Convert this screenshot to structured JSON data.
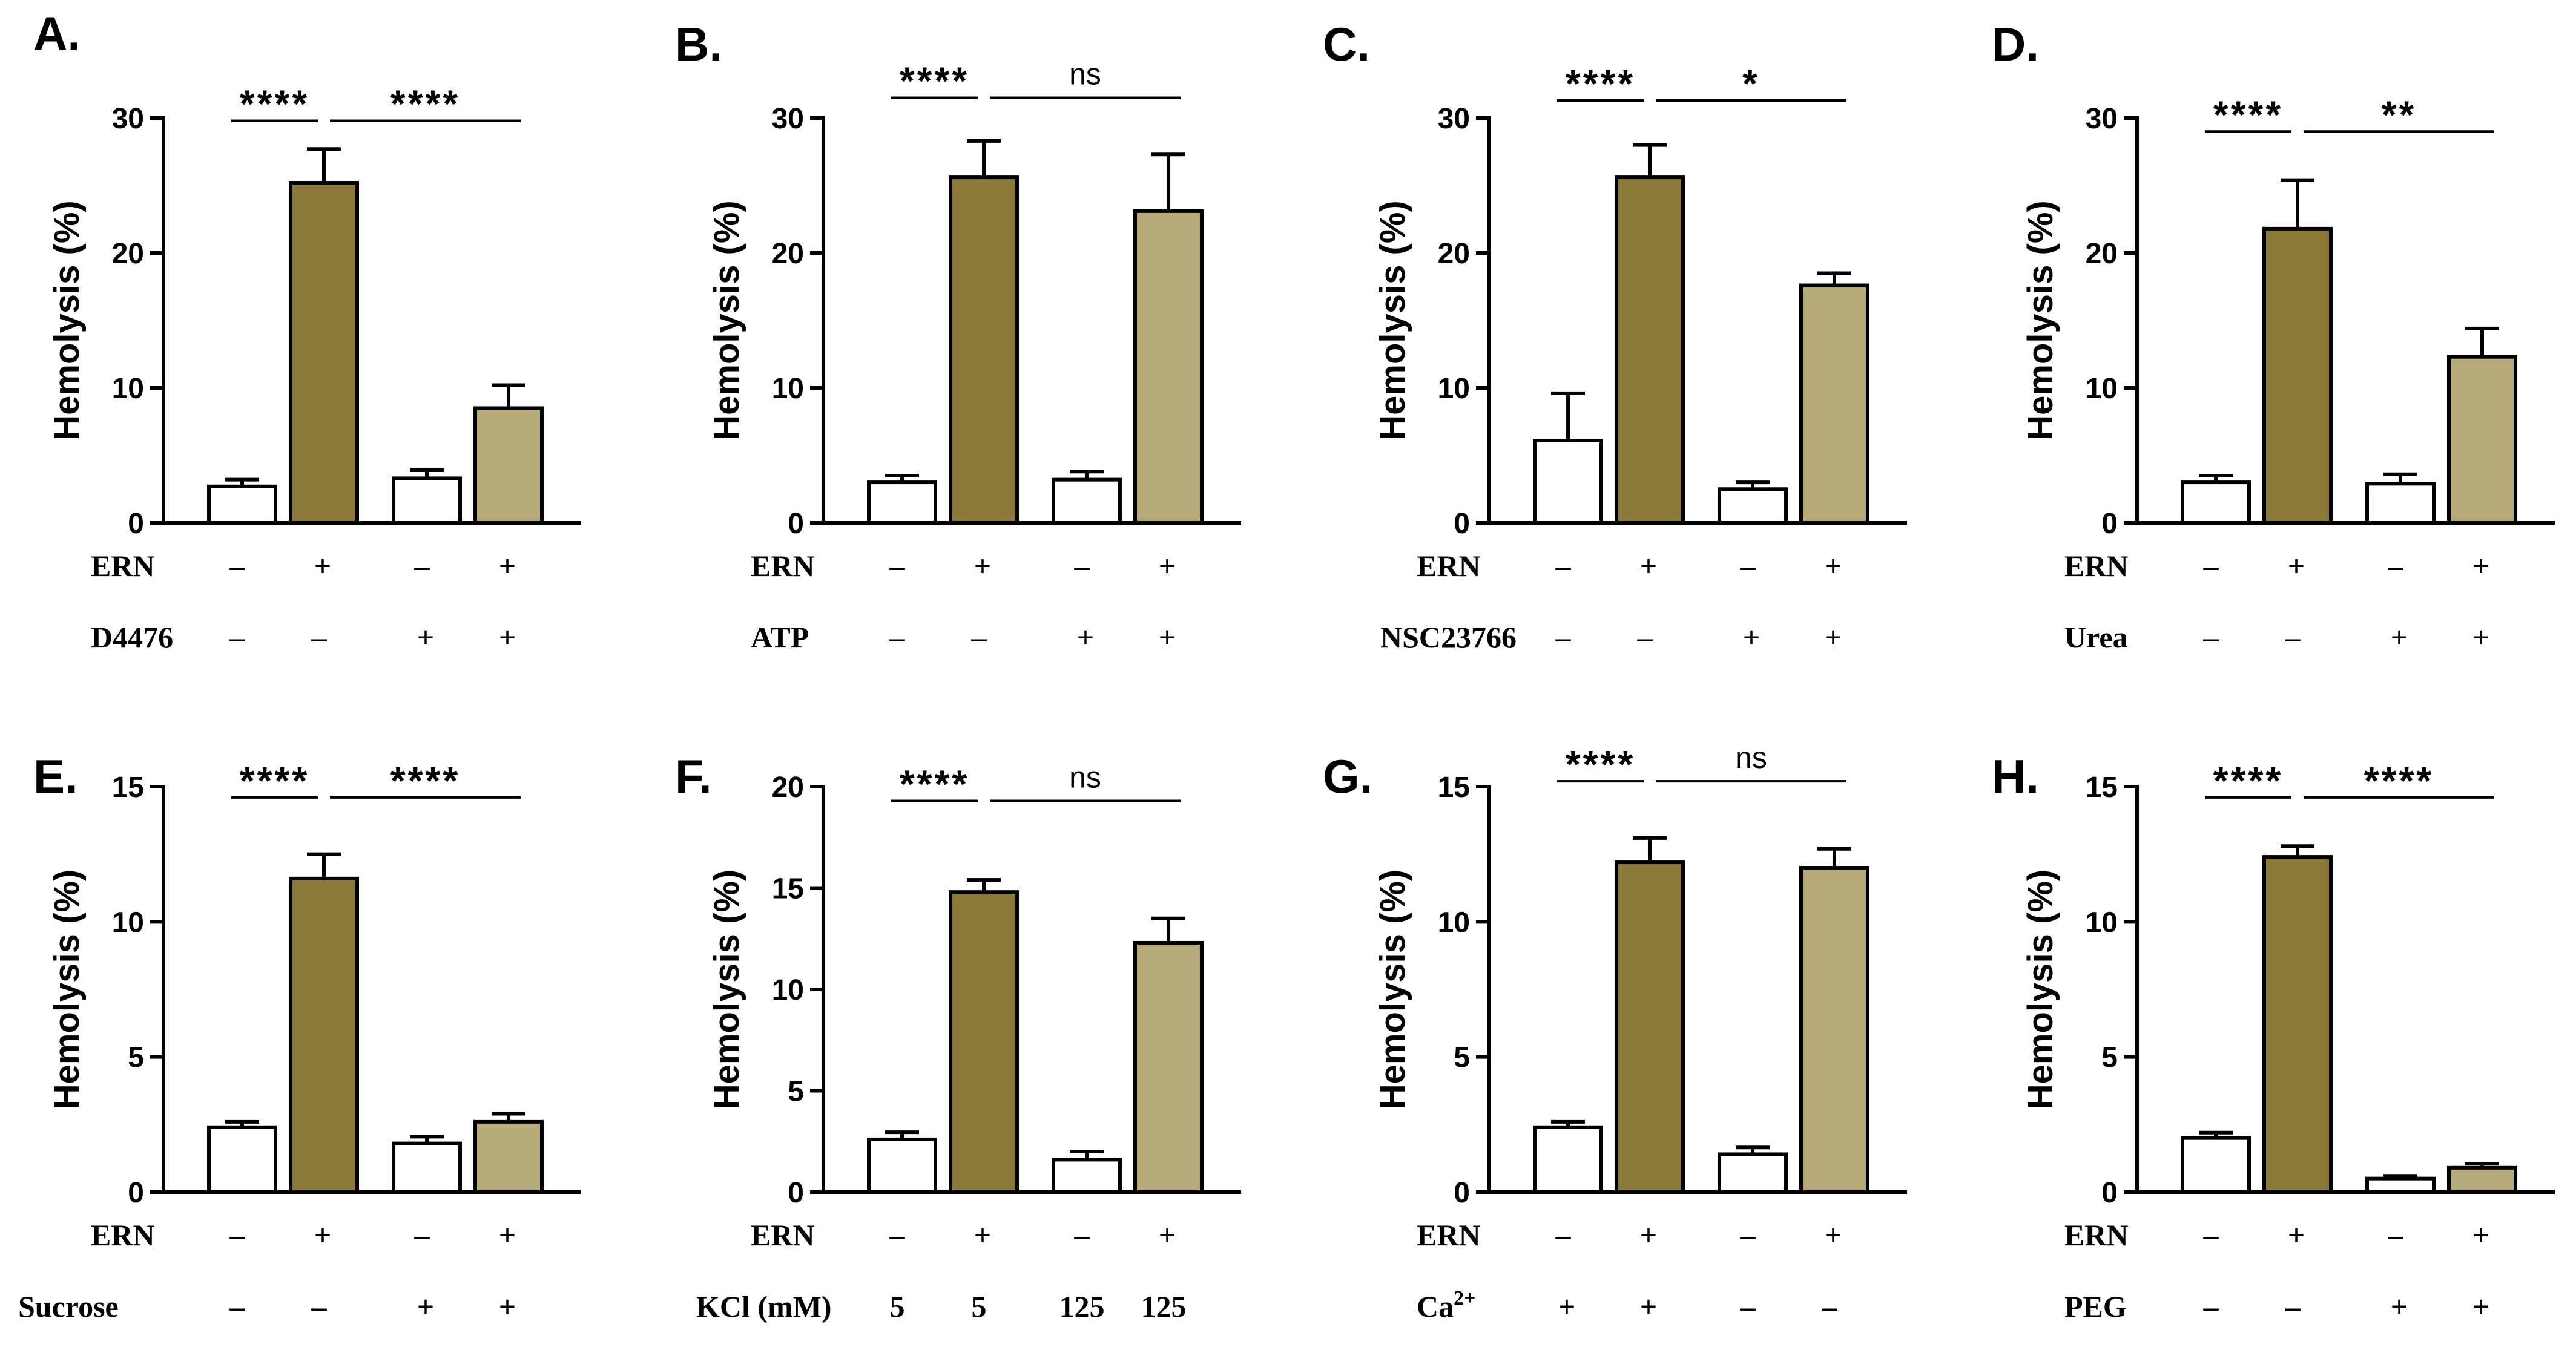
{
  "colors": {
    "dark": "#8b7a3a",
    "light": "#b5aa78",
    "white": "#ffffff",
    "ink": "#000000"
  },
  "chart_data": [
    {
      "type": "bar",
      "panel": "A.",
      "ylabel": "Hemolysis (%)",
      "ylim": [
        0,
        30
      ],
      "ticks": [
        0,
        10,
        20,
        30
      ],
      "values": [
        2.7,
        25.2,
        3.3,
        8.5
      ],
      "errors": [
        0.5,
        2.5,
        0.6,
        1.7
      ],
      "fills": [
        "white",
        "dark",
        "white",
        "light"
      ],
      "factors": [
        {
          "label": "ERN",
          "values": [
            "–",
            "+",
            "–",
            "+"
          ]
        },
        {
          "label": "D4476",
          "values": [
            "–",
            "–",
            "+",
            "+"
          ]
        }
      ],
      "sig": [
        {
          "from": 0,
          "to": 1,
          "text": "****",
          "y": 29.8
        },
        {
          "from": 1,
          "to": 3,
          "text": "****",
          "y": 29.8
        }
      ]
    },
    {
      "type": "bar",
      "panel": "B.",
      "ylabel": "Hemolysis (%)",
      "ylim": [
        0,
        30
      ],
      "ticks": [
        0,
        10,
        20,
        30
      ],
      "values": [
        3.0,
        25.6,
        3.2,
        23.1
      ],
      "errors": [
        0.5,
        2.7,
        0.6,
        4.2
      ],
      "fills": [
        "white",
        "dark",
        "white",
        "light"
      ],
      "factors": [
        {
          "label": "ERN",
          "values": [
            "–",
            "+",
            "–",
            "+"
          ]
        },
        {
          "label": "ATP",
          "values": [
            "–",
            "–",
            "+",
            "+"
          ]
        }
      ],
      "sig": [
        {
          "from": 0,
          "to": 1,
          "text": "****",
          "y": 31.5
        },
        {
          "from": 1,
          "to": 3,
          "text": "ns",
          "y": 31.5
        }
      ]
    },
    {
      "type": "bar",
      "panel": "C.",
      "ylabel": "Hemolysis (%)",
      "ylim": [
        0,
        30
      ],
      "ticks": [
        0,
        10,
        20,
        30
      ],
      "values": [
        6.1,
        25.6,
        2.5,
        17.6
      ],
      "errors": [
        3.5,
        2.4,
        0.5,
        0.9
      ],
      "fills": [
        "white",
        "dark",
        "white",
        "light"
      ],
      "factors": [
        {
          "label": "ERN",
          "values": [
            "–",
            "+",
            "–",
            "+"
          ]
        },
        {
          "label": "NSC23766",
          "values": [
            "–",
            "–",
            "+",
            "+"
          ]
        }
      ],
      "sig": [
        {
          "from": 0,
          "to": 1,
          "text": "****",
          "y": 31.3
        },
        {
          "from": 1,
          "to": 3,
          "text": "*",
          "y": 31.3
        }
      ]
    },
    {
      "type": "bar",
      "panel": "D.",
      "ylabel": "Hemolysis (%)",
      "ylim": [
        0,
        30
      ],
      "ticks": [
        0,
        10,
        20,
        30
      ],
      "values": [
        3.0,
        21.8,
        2.9,
        12.3
      ],
      "errors": [
        0.5,
        3.6,
        0.7,
        2.1
      ],
      "fills": [
        "white",
        "dark",
        "white",
        "light"
      ],
      "factors": [
        {
          "label": "ERN",
          "values": [
            "–",
            "+",
            "–",
            "+"
          ]
        },
        {
          "label": "Urea",
          "values": [
            "–",
            "–",
            "+",
            "+"
          ]
        }
      ],
      "sig": [
        {
          "from": 0,
          "to": 1,
          "text": "****",
          "y": 29.0
        },
        {
          "from": 1,
          "to": 3,
          "text": "**",
          "y": 29.0
        }
      ]
    },
    {
      "type": "bar",
      "panel": "E.",
      "ylabel": "Hemolysis (%)",
      "ylim": [
        0,
        15
      ],
      "ticks": [
        0,
        5,
        10,
        15
      ],
      "values": [
        2.4,
        11.6,
        1.8,
        2.6
      ],
      "errors": [
        0.2,
        0.9,
        0.25,
        0.3
      ],
      "fills": [
        "white",
        "dark",
        "white",
        "light"
      ],
      "factors": [
        {
          "label": "ERN",
          "values": [
            "–",
            "+",
            "–",
            "+"
          ]
        },
        {
          "label": "Sucrose",
          "values": [
            "–",
            "–",
            "+",
            "+"
          ]
        }
      ],
      "sig": [
        {
          "from": 0,
          "to": 1,
          "text": "****",
          "y": 14.6
        },
        {
          "from": 1,
          "to": 3,
          "text": "****",
          "y": 14.6
        }
      ]
    },
    {
      "type": "bar",
      "panel": "F.",
      "ylabel": "Hemolysis (%)",
      "ylim": [
        0,
        20
      ],
      "ticks": [
        0,
        5,
        10,
        15,
        20
      ],
      "values": [
        2.6,
        14.8,
        1.6,
        12.3
      ],
      "errors": [
        0.35,
        0.6,
        0.4,
        1.2
      ],
      "fills": [
        "white",
        "dark",
        "white",
        "light"
      ],
      "factors": [
        {
          "label": "ERN",
          "values": [
            "–",
            "+",
            "–",
            "+"
          ]
        },
        {
          "label": "KCl (mM)",
          "values": [
            "5",
            "5",
            "125",
            "125"
          ]
        }
      ],
      "sig": [
        {
          "from": 0,
          "to": 1,
          "text": "****",
          "y": 19.3
        },
        {
          "from": 1,
          "to": 3,
          "text": "ns",
          "y": 19.3
        }
      ]
    },
    {
      "type": "bar",
      "panel": "G.",
      "ylabel": "Hemolysis (%)",
      "ylim": [
        0,
        15
      ],
      "ticks": [
        0,
        5,
        10,
        15
      ],
      "values": [
        2.4,
        12.2,
        1.4,
        12.0
      ],
      "errors": [
        0.2,
        0.9,
        0.25,
        0.7
      ],
      "fills": [
        "white",
        "dark",
        "white",
        "light"
      ],
      "factors": [
        {
          "label": "ERN",
          "values": [
            "–",
            "+",
            "–",
            "+"
          ]
        },
        {
          "label": "Ca",
          "label_sup": "2+",
          "values": [
            "+",
            "+",
            "–",
            "–"
          ]
        }
      ],
      "sig": [
        {
          "from": 0,
          "to": 1,
          "text": "****",
          "y": 15.2
        },
        {
          "from": 1,
          "to": 3,
          "text": "ns",
          "y": 15.2
        }
      ]
    },
    {
      "type": "bar",
      "panel": "H.",
      "ylabel": "Hemolysis (%)",
      "ylim": [
        0,
        15
      ],
      "ticks": [
        0,
        5,
        10,
        15
      ],
      "values": [
        2.0,
        12.4,
        0.5,
        0.9
      ],
      "errors": [
        0.2,
        0.4,
        0.1,
        0.15
      ],
      "fills": [
        "white",
        "dark",
        "white",
        "light"
      ],
      "factors": [
        {
          "label": "ERN",
          "values": [
            "–",
            "+",
            "–",
            "+"
          ]
        },
        {
          "label": "PEG",
          "values": [
            "–",
            "–",
            "+",
            "+"
          ]
        }
      ],
      "sig": [
        {
          "from": 0,
          "to": 1,
          "text": "****",
          "y": 14.6
        },
        {
          "from": 1,
          "to": 3,
          "text": "****",
          "y": 14.6
        }
      ]
    }
  ]
}
